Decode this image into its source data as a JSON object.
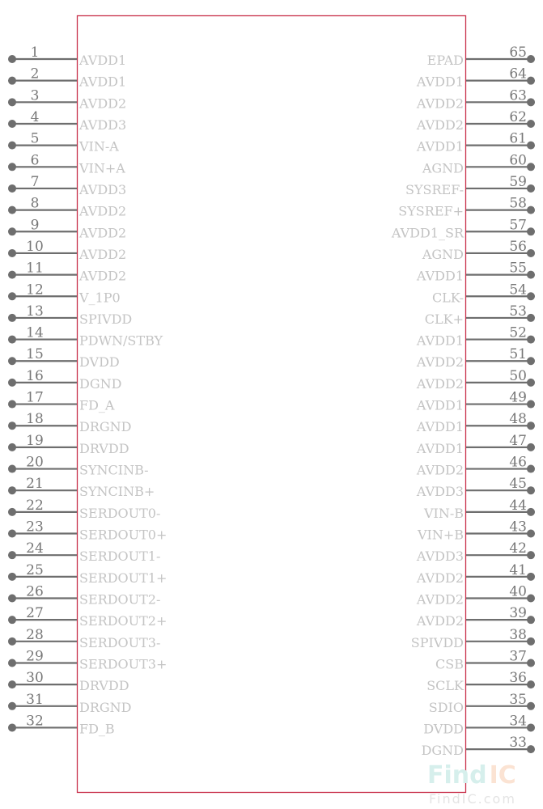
{
  "colors": {
    "body_outline": "#c8304a",
    "pin": "#6e6e6e",
    "label": "#c4c4c4",
    "watermark_find": "#d6efec",
    "watermark_ic": "#fbe3d3"
  },
  "left_pins": [
    {
      "num": "1",
      "name": "AVDD1"
    },
    {
      "num": "2",
      "name": "AVDD1"
    },
    {
      "num": "3",
      "name": "AVDD2"
    },
    {
      "num": "4",
      "name": "AVDD3"
    },
    {
      "num": "5",
      "name": "VIN-A"
    },
    {
      "num": "6",
      "name": "VIN+A"
    },
    {
      "num": "7",
      "name": "AVDD3"
    },
    {
      "num": "8",
      "name": "AVDD2"
    },
    {
      "num": "9",
      "name": "AVDD2"
    },
    {
      "num": "10",
      "name": "AVDD2"
    },
    {
      "num": "11",
      "name": "AVDD2"
    },
    {
      "num": "12",
      "name": "V_1P0"
    },
    {
      "num": "13",
      "name": "SPIVDD"
    },
    {
      "num": "14",
      "name": "PDWN/STBY"
    },
    {
      "num": "15",
      "name": "DVDD"
    },
    {
      "num": "16",
      "name": "DGND"
    },
    {
      "num": "17",
      "name": "FD_A"
    },
    {
      "num": "18",
      "name": "DRGND"
    },
    {
      "num": "19",
      "name": "DRVDD"
    },
    {
      "num": "20",
      "name": "SYNCINB-"
    },
    {
      "num": "21",
      "name": "SYNCINB+"
    },
    {
      "num": "22",
      "name": "SERDOUT0-"
    },
    {
      "num": "23",
      "name": "SERDOUT0+"
    },
    {
      "num": "24",
      "name": "SERDOUT1-"
    },
    {
      "num": "25",
      "name": "SERDOUT1+"
    },
    {
      "num": "26",
      "name": "SERDOUT2-"
    },
    {
      "num": "27",
      "name": "SERDOUT2+"
    },
    {
      "num": "28",
      "name": "SERDOUT3-"
    },
    {
      "num": "29",
      "name": "SERDOUT3+"
    },
    {
      "num": "30",
      "name": "DRVDD"
    },
    {
      "num": "31",
      "name": "DRGND"
    },
    {
      "num": "32",
      "name": "FD_B"
    }
  ],
  "right_pins": [
    {
      "num": "65",
      "name": "EPAD"
    },
    {
      "num": "64",
      "name": "AVDD1"
    },
    {
      "num": "63",
      "name": "AVDD2"
    },
    {
      "num": "62",
      "name": "AVDD2"
    },
    {
      "num": "61",
      "name": "AVDD1"
    },
    {
      "num": "60",
      "name": "AGND"
    },
    {
      "num": "59",
      "name": "SYSREF-"
    },
    {
      "num": "58",
      "name": "SYSREF+"
    },
    {
      "num": "57",
      "name": "AVDD1_SR"
    },
    {
      "num": "56",
      "name": "AGND"
    },
    {
      "num": "55",
      "name": "AVDD1"
    },
    {
      "num": "54",
      "name": "CLK-"
    },
    {
      "num": "53",
      "name": "CLK+"
    },
    {
      "num": "52",
      "name": "AVDD1"
    },
    {
      "num": "51",
      "name": "AVDD2"
    },
    {
      "num": "50",
      "name": "AVDD2"
    },
    {
      "num": "49",
      "name": "AVDD1"
    },
    {
      "num": "48",
      "name": "AVDD1"
    },
    {
      "num": "47",
      "name": "AVDD1"
    },
    {
      "num": "46",
      "name": "AVDD2"
    },
    {
      "num": "45",
      "name": "AVDD3"
    },
    {
      "num": "44",
      "name": "VIN-B"
    },
    {
      "num": "43",
      "name": "VIN+B"
    },
    {
      "num": "42",
      "name": "AVDD3"
    },
    {
      "num": "41",
      "name": "AVDD2"
    },
    {
      "num": "40",
      "name": "AVDD2"
    },
    {
      "num": "39",
      "name": "AVDD2"
    },
    {
      "num": "38",
      "name": "SPIVDD"
    },
    {
      "num": "37",
      "name": "CSB"
    },
    {
      "num": "36",
      "name": "SCLK"
    },
    {
      "num": "35",
      "name": "SDIO"
    },
    {
      "num": "34",
      "name": "DVDD"
    },
    {
      "num": "33",
      "name": "DGND"
    }
  ],
  "watermark": {
    "find": "Find",
    "ic": "IC",
    "url": "FindIC.com"
  }
}
